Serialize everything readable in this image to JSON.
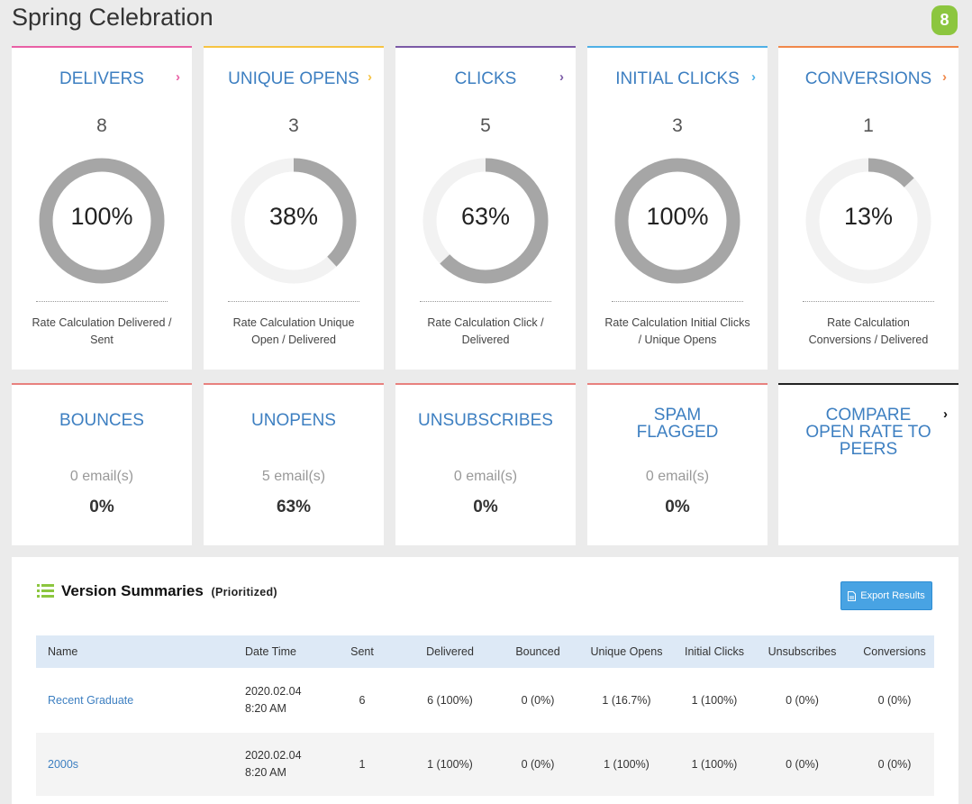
{
  "page": {
    "title": "Spring Celebration",
    "badge": "8"
  },
  "metrics": [
    {
      "title": "DELIVERS",
      "count": "8",
      "percent": 100,
      "percent_label": "100%",
      "desc": "Rate Calculation Delivered / Sent",
      "color": "#e960a5"
    },
    {
      "title": "UNIQUE OPENS",
      "count": "3",
      "percent": 38,
      "percent_label": "38%",
      "desc": "Rate Calculation Unique Open / Delivered",
      "color": "#f6c342"
    },
    {
      "title": "CLICKS",
      "count": "5",
      "percent": 63,
      "percent_label": "63%",
      "desc": "Rate Calculation Click / Delivered",
      "color": "#7b5aa6"
    },
    {
      "title": "INITIAL CLICKS",
      "count": "3",
      "percent": 100,
      "percent_label": "100%",
      "desc": "Rate Calculation Initial Clicks / Unique Opens",
      "color": "#4fb0e6"
    },
    {
      "title": "CONVERSIONS",
      "count": "1",
      "percent": 13,
      "percent_label": "13%",
      "desc": "Rate Calculation Conversions / Delivered",
      "color": "#f0884a"
    }
  ],
  "stats": [
    {
      "title": "BOUNCES",
      "count": "0 email(s)",
      "percent": "0%"
    },
    {
      "title": "UNOPENS",
      "count": "5 email(s)",
      "percent": "63%"
    },
    {
      "title": "UNSUBSCRIBES",
      "count": "0 email(s)",
      "percent": "0%"
    },
    {
      "title_line1": "SPAM",
      "title_line2": "FLAGGED",
      "count": "0 email(s)",
      "percent": "0%"
    }
  ],
  "compare": {
    "line1": "COMPARE",
    "line2": "OPEN RATE TO",
    "line3": "PEERS"
  },
  "summary": {
    "title": "Version Summaries",
    "subtitle": "(Prioritized)",
    "export_label": "Export Results",
    "columns": [
      "Name",
      "Date Time",
      "Sent",
      "Delivered",
      "Bounced",
      "Unique Opens",
      "Initial Clicks",
      "Unsubscribes",
      "Conversions"
    ],
    "rows": [
      {
        "name": "Recent Graduate",
        "date": "2020.02.04",
        "time": "8:20 AM",
        "sent": "6",
        "delivered": "6 (100%)",
        "bounced": "0 (0%)",
        "unique_opens": "1 (16.7%)",
        "initial_clicks": "1 (100%)",
        "unsubscribes": "0 (0%)",
        "conversions": "0 (0%)"
      },
      {
        "name": "2000s",
        "date": "2020.02.04",
        "time": "8:20 AM",
        "sent": "1",
        "delivered": "1 (100%)",
        "bounced": "0 (0%)",
        "unique_opens": "1 (100%)",
        "initial_clicks": "1 (100%)",
        "unsubscribes": "0 (0%)",
        "conversions": "0 (0%)"
      }
    ]
  }
}
